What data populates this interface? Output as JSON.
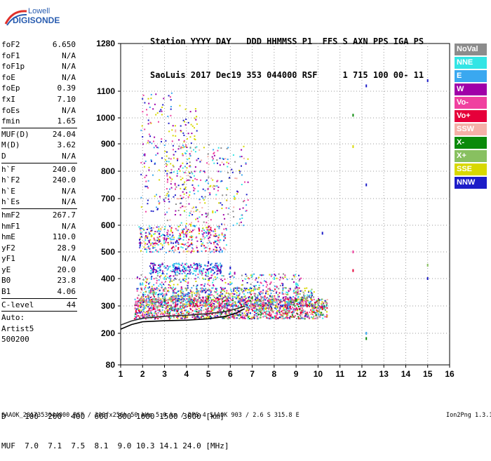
{
  "logo": {
    "line1": "Lowell",
    "line2": "DIGISONDE"
  },
  "header": {
    "line1": "Station YYYY DAY   DDD HHMMSS P1  FFS S AXN PPS IGA PS",
    "line2": "SaoLuis 2017 Dec19 353 044000 RSF     1 715 100 00- 11"
  },
  "params": {
    "group1": [
      {
        "k": "foF2",
        "v": "6.650"
      },
      {
        "k": "foF1",
        "v": "N/A"
      },
      {
        "k": "foF1p",
        "v": "N/A"
      },
      {
        "k": "foE",
        "v": "N/A"
      },
      {
        "k": "foEp",
        "v": "0.39"
      },
      {
        "k": "fxI",
        "v": "7.10"
      },
      {
        "k": "foEs",
        "v": "N/A"
      },
      {
        "k": "fmin",
        "v": "1.65"
      }
    ],
    "group2": [
      {
        "k": "MUF(D)",
        "v": "24.04"
      },
      {
        "k": "M(D)",
        "v": "3.62"
      },
      {
        "k": "D",
        "v": "N/A"
      }
    ],
    "group3": [
      {
        "k": "h`F",
        "v": "240.0"
      },
      {
        "k": "h`F2",
        "v": "240.0"
      },
      {
        "k": "h`E",
        "v": "N/A"
      },
      {
        "k": "h`Es",
        "v": "N/A"
      }
    ],
    "group4": [
      {
        "k": "hmF2",
        "v": "267.7"
      },
      {
        "k": "hmF1",
        "v": "N/A"
      },
      {
        "k": "hmE",
        "v": "110.0"
      },
      {
        "k": "yF2",
        "v": "28.9"
      },
      {
        "k": "yF1",
        "v": "N/A"
      },
      {
        "k": "yE",
        "v": "20.0"
      },
      {
        "k": "B0",
        "v": "23.8"
      },
      {
        "k": "B1",
        "v": "4.06"
      }
    ],
    "group5": [
      {
        "k": "C-level",
        "v": "44"
      }
    ],
    "auto": [
      "Auto:",
      "Artist5",
      "500200"
    ]
  },
  "legend": [
    {
      "label": "NoVal",
      "color": "#8c8c8c"
    },
    {
      "label": "NNE",
      "color": "#33e5e5"
    },
    {
      "label": "E",
      "color": "#3aa8f0"
    },
    {
      "label": "W",
      "color": "#a000a8"
    },
    {
      "label": "Vo-",
      "color": "#f040a0"
    },
    {
      "label": "Vo+",
      "color": "#e6003a"
    },
    {
      "label": "SSW",
      "color": "#f5b0a8"
    },
    {
      "label": "X-",
      "color": "#0a8a0a"
    },
    {
      "label": "X+",
      "color": "#88c060"
    },
    {
      "label": "SSE",
      "color": "#d8d800"
    },
    {
      "label": "NNW",
      "color": "#1c1cc8"
    }
  ],
  "bottom": {
    "line1": "D    100  200  400  600  800 1000 1500 3000 [km]",
    "line2": "MUF  7.0  7.1  7.5  8.1  9.0 10.3 14.1 24.0 [MHz]"
  },
  "footer": "SAAOK_2017353044000.RSF / 300fx256h 50 kHs 5.0 km / DPS-4 SAAOK 903 / 2.6 S 315.8 E",
  "version": "Ion2Png 1.3.17",
  "chart_data": {
    "type": "scatter",
    "xlim": [
      1,
      16
    ],
    "ylim": [
      80,
      1280
    ],
    "xticks": [
      1,
      2,
      3,
      4,
      5,
      6,
      7,
      8,
      9,
      10,
      11,
      12,
      13,
      14,
      15,
      16
    ],
    "yticks": [
      80,
      200,
      300,
      400,
      500,
      600,
      700,
      800,
      900,
      1000,
      1100,
      1280
    ],
    "grid": "dotted",
    "series": [
      {
        "name": "NoVal",
        "points": [
          [
            1.8,
            300
          ],
          [
            2.5,
            290
          ],
          [
            3.5,
            310
          ],
          [
            4.5,
            300
          ],
          [
            5.5,
            310
          ],
          [
            6.5,
            300
          ],
          [
            7.5,
            310
          ],
          [
            8.5,
            320
          ],
          [
            9.5,
            330
          ]
        ]
      },
      {
        "name": "NNE",
        "points": [
          [
            2.0,
            380
          ],
          [
            3.0,
            400
          ],
          [
            4.0,
            410
          ],
          [
            5.0,
            420
          ],
          [
            6.0,
            420
          ],
          [
            7.0,
            410
          ],
          [
            8.0,
            400
          ],
          [
            9.0,
            380
          ]
        ]
      },
      {
        "name": "E",
        "points": [
          [
            1.9,
            380
          ],
          [
            2.4,
            400
          ],
          [
            3.5,
            420
          ],
          [
            4.6,
            430
          ],
          [
            5.5,
            430
          ],
          [
            12.2,
            200
          ]
        ]
      },
      {
        "name": "W",
        "points": [
          [
            2.3,
            540
          ],
          [
            3.0,
            550
          ],
          [
            4.0,
            560
          ],
          [
            5.0,
            570
          ],
          [
            4.5,
            440
          ],
          [
            5.5,
            430
          ],
          [
            6.2,
            420
          ],
          [
            2.1,
            860
          ]
        ]
      },
      {
        "name": "Vo-",
        "points": [
          [
            1.8,
            300
          ],
          [
            2.5,
            300
          ],
          [
            3.5,
            310
          ],
          [
            4.5,
            320
          ],
          [
            5.5,
            310
          ],
          [
            6.5,
            320
          ],
          [
            7.5,
            310
          ],
          [
            8.5,
            320
          ],
          [
            9.5,
            300
          ],
          [
            11.6,
            500
          ]
        ]
      },
      {
        "name": "Vo+",
        "points": [
          [
            1.7,
            280
          ],
          [
            2.5,
            290
          ],
          [
            3.5,
            300
          ],
          [
            4.5,
            300
          ],
          [
            5.5,
            300
          ],
          [
            6.5,
            300
          ],
          [
            7.5,
            300
          ],
          [
            8.5,
            300
          ],
          [
            9.5,
            300
          ],
          [
            10.2,
            290
          ],
          [
            11.6,
            430
          ]
        ]
      },
      {
        "name": "SSW",
        "points": [
          [
            2.0,
            330
          ],
          [
            3.0,
            340
          ],
          [
            4.5,
            340
          ],
          [
            6.0,
            340
          ],
          [
            8.0,
            330
          ],
          [
            3.5,
            950
          ]
        ]
      },
      {
        "name": "X-",
        "points": [
          [
            3.0,
            320
          ],
          [
            5.0,
            330
          ],
          [
            7.0,
            330
          ],
          [
            9.0,
            320
          ],
          [
            11.6,
            1010
          ],
          [
            12.2,
            180
          ]
        ]
      },
      {
        "name": "X+",
        "points": [
          [
            2.5,
            350
          ],
          [
            4.0,
            360
          ],
          [
            6.5,
            360
          ],
          [
            9.0,
            350
          ],
          [
            15.0,
            450
          ]
        ]
      },
      {
        "name": "SSE",
        "points": [
          [
            2.4,
            560
          ],
          [
            3.3,
            580
          ],
          [
            4.2,
            600
          ],
          [
            5.2,
            650
          ],
          [
            6.2,
            700
          ],
          [
            11.6,
            890
          ]
        ]
      },
      {
        "name": "NNW",
        "points": [
          [
            2.5,
            440
          ],
          [
            3.5,
            440
          ],
          [
            4.5,
            450
          ],
          [
            5.0,
            460
          ],
          [
            6.0,
            440
          ],
          [
            12.2,
            1120
          ],
          [
            12.2,
            750
          ],
          [
            15.0,
            1140
          ],
          [
            15.0,
            400
          ],
          [
            10.2,
            570
          ]
        ]
      }
    ],
    "virtual_height_curve": {
      "x": [
        1.0,
        1.5,
        2.0,
        3.0,
        4.0,
        5.0,
        5.8,
        6.3,
        6.65
      ],
      "y": [
        215,
        232,
        242,
        246,
        248,
        253,
        262,
        275,
        290
      ]
    },
    "profile_curve": {
      "x": [
        1.0,
        1.5,
        2.0,
        3.0,
        4.0,
        5.0,
        5.8,
        6.3,
        6.65
      ],
      "y": [
        230,
        245,
        255,
        262,
        266,
        272,
        280,
        290,
        300
      ]
    }
  }
}
